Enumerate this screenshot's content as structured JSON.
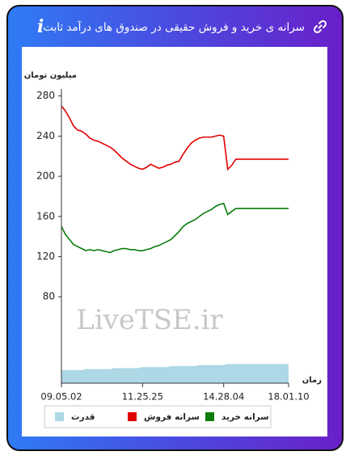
{
  "header": {
    "title": "سرانه ی خرید و فروش حقیقی در صندوق های درآمد ثابت",
    "info": "i"
  },
  "chart_data": {
    "type": "line",
    "y_label": "میلیون تومان",
    "x_label": "زمان",
    "watermark": "LiveTSE.ir",
    "categories": [
      "09.05.02",
      null,
      null,
      null,
      null,
      null,
      null,
      null,
      null,
      null,
      null,
      null,
      null,
      null,
      null,
      null,
      null,
      null,
      null,
      null,
      "11.25.25",
      null,
      null,
      null,
      null,
      null,
      null,
      null,
      null,
      null,
      null,
      null,
      null,
      null,
      null,
      null,
      null,
      null,
      null,
      null,
      "14.28.04",
      null,
      null,
      null,
      null,
      null,
      null,
      null,
      null,
      null,
      null,
      null,
      null,
      null,
      null,
      null,
      "18.01.10"
    ],
    "ylim": [
      -6,
      287
    ],
    "yticks": [
      80,
      120,
      160,
      200,
      240,
      280
    ],
    "grid": false,
    "series": [
      {
        "name": "قدرت",
        "color": "#add8e6",
        "kind": "area",
        "values": [
          7,
          7,
          7,
          7,
          7,
          7,
          8,
          8,
          8,
          8,
          8,
          8,
          8,
          9,
          9,
          9,
          9,
          9,
          9,
          9,
          10,
          10,
          10,
          10,
          10,
          10,
          10,
          11,
          11,
          11,
          11,
          11,
          11,
          11,
          12,
          12,
          12,
          12,
          12,
          12,
          12,
          13,
          13,
          13,
          13,
          13,
          13,
          13,
          13,
          13,
          13,
          13,
          13,
          13,
          13,
          13,
          13
        ]
      },
      {
        "name": "سرانه فروش",
        "color": "#e00000",
        "kind": "line",
        "values": [
          270,
          265,
          258,
          250,
          246,
          245,
          242,
          238,
          236,
          235,
          233,
          231,
          229,
          226,
          222,
          218,
          215,
          212,
          210,
          208,
          207,
          209,
          212,
          210,
          208,
          209,
          211,
          212,
          214,
          215,
          222,
          228,
          233,
          236,
          238,
          239,
          239,
          239,
          240,
          241,
          240,
          207,
          211,
          217,
          217,
          217,
          217,
          217,
          217,
          217,
          217,
          217,
          217,
          217,
          217,
          217,
          217
        ]
      },
      {
        "name": "سرانه خرید",
        "color": "#0a7d0a",
        "kind": "line",
        "values": [
          150,
          142,
          137,
          132,
          130,
          128,
          126,
          127,
          126,
          127,
          126,
          125,
          124,
          126,
          127,
          128,
          128,
          127,
          127,
          126,
          126,
          127,
          128,
          130,
          131,
          133,
          135,
          137,
          141,
          145,
          150,
          153,
          155,
          157,
          160,
          163,
          165,
          167,
          170,
          172,
          173,
          162,
          165,
          168,
          168,
          168,
          168,
          168,
          168,
          168,
          168,
          168,
          168,
          168,
          168,
          168,
          168
        ]
      }
    ]
  }
}
